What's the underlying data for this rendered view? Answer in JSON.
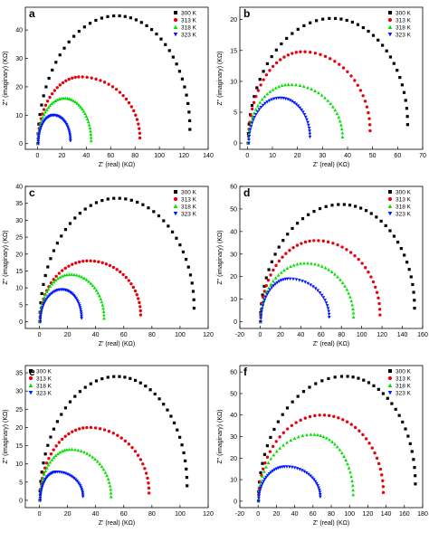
{
  "figure": {
    "legend_labels": [
      "300 K",
      "313 K",
      "318 K",
      "323 K"
    ],
    "colors": [
      "#000000",
      "#e8000b",
      "#00e000",
      "#0018ff"
    ],
    "markers": [
      "square",
      "circle",
      "triangle-up",
      "triangle-down"
    ]
  },
  "chart_data": [
    {
      "type": "scatter",
      "panel": "a",
      "xlabel": "Z' (real) (KΩ)",
      "ylabel": "Z\" (imaginary) (KΩ)",
      "xlim": [
        -10,
        140
      ],
      "ylim": [
        -2,
        48
      ],
      "xticks": [
        0,
        20,
        40,
        60,
        80,
        100,
        120,
        140
      ],
      "yticks": [
        0,
        10,
        20,
        30,
        40
      ],
      "legend": "top-right",
      "series": [
        {
          "name": "300 K",
          "start": 0.3,
          "peak_x": 65,
          "peak_y": 45,
          "end_x": 125,
          "end_y": 5
        },
        {
          "name": "313 K",
          "start": 0.4,
          "peak_x": 35,
          "peak_y": 23.5,
          "end_x": 84,
          "end_y": 2
        },
        {
          "name": "318 K",
          "start": 0.4,
          "peak_x": 22,
          "peak_y": 16,
          "end_x": 44,
          "end_y": 1
        },
        {
          "name": "323 K",
          "start": 0.6,
          "peak_x": 13,
          "peak_y": 10,
          "end_x": 27,
          "end_y": 1
        }
      ]
    },
    {
      "type": "scatter",
      "panel": "b",
      "xlabel": "Z' (real) (KΩ)",
      "ylabel": "",
      "xlim": [
        -3,
        70
      ],
      "ylim": [
        -1,
        22
      ],
      "xticks": [
        0,
        10,
        20,
        30,
        40,
        50,
        60,
        70
      ],
      "yticks": [
        0,
        5,
        10,
        15,
        20
      ],
      "legend": "top-right",
      "series": [
        {
          "name": "300 K",
          "start": 0.3,
          "peak_x": 34,
          "peak_y": 20.2,
          "end_x": 64,
          "end_y": 3
        },
        {
          "name": "313 K",
          "start": 0.4,
          "peak_x": 22,
          "peak_y": 14.8,
          "end_x": 49,
          "end_y": 2
        },
        {
          "name": "318 K",
          "start": 0.4,
          "peak_x": 17,
          "peak_y": 9.5,
          "end_x": 38,
          "end_y": 1
        },
        {
          "name": "323 K",
          "start": 0.6,
          "peak_x": 13,
          "peak_y": 7.3,
          "end_x": 25,
          "end_y": 1
        }
      ]
    },
    {
      "type": "scatter",
      "panel": "c",
      "xlabel": "Z' (real) (KΩ)",
      "ylabel": "Z\" (imaginary) (KΩ)",
      "xlim": [
        -10,
        120
      ],
      "ylim": [
        -2,
        40
      ],
      "xticks": [
        0,
        20,
        40,
        60,
        80,
        100,
        120
      ],
      "yticks": [
        0,
        5,
        10,
        15,
        20,
        25,
        30,
        35,
        40
      ],
      "legend": "top-right",
      "series": [
        {
          "name": "300 K",
          "start": 0.3,
          "peak_x": 55,
          "peak_y": 36.5,
          "end_x": 110,
          "end_y": 4
        },
        {
          "name": "313 K",
          "start": 0.4,
          "peak_x": 35,
          "peak_y": 18,
          "end_x": 72,
          "end_y": 2
        },
        {
          "name": "318 K",
          "start": 0.4,
          "peak_x": 22,
          "peak_y": 14,
          "end_x": 46,
          "end_y": 1
        },
        {
          "name": "323 K",
          "start": 0.6,
          "peak_x": 16,
          "peak_y": 9.5,
          "end_x": 30,
          "end_y": 1
        }
      ]
    },
    {
      "type": "scatter",
      "panel": "d",
      "xlabel": "Z' (real) (KΩ)",
      "ylabel": "",
      "xlim": [
        -20,
        160
      ],
      "ylim": [
        -3,
        60
      ],
      "xticks": [
        -20,
        0,
        20,
        40,
        60,
        80,
        100,
        120,
        140,
        160
      ],
      "yticks": [
        0,
        10,
        20,
        30,
        40,
        50,
        60
      ],
      "legend": "top-right",
      "series": [
        {
          "name": "300 K",
          "start": 0.3,
          "peak_x": 80,
          "peak_y": 52,
          "end_x": 152,
          "end_y": 6
        },
        {
          "name": "313 K",
          "start": 0.4,
          "peak_x": 55,
          "peak_y": 36,
          "end_x": 118,
          "end_y": 3
        },
        {
          "name": "318 K",
          "start": 0.4,
          "peak_x": 45,
          "peak_y": 26,
          "end_x": 92,
          "end_y": 2
        },
        {
          "name": "323 K",
          "start": 0.6,
          "peak_x": 28,
          "peak_y": 19,
          "end_x": 68,
          "end_y": 2
        }
      ]
    },
    {
      "type": "scatter",
      "panel": "e",
      "xlabel": "Z' (real) (KΩ)",
      "ylabel": "Z\" (imaginary) (KΩ)",
      "xlim": [
        -10,
        120
      ],
      "ylim": [
        -2,
        37
      ],
      "xticks": [
        0,
        20,
        40,
        60,
        80,
        100,
        120
      ],
      "yticks": [
        0,
        5,
        10,
        15,
        20,
        25,
        30,
        35
      ],
      "legend": "top-left",
      "series": [
        {
          "name": "300 K",
          "start": 0.3,
          "peak_x": 55,
          "peak_y": 34,
          "end_x": 105,
          "end_y": 4
        },
        {
          "name": "313 K",
          "start": 0.4,
          "peak_x": 35,
          "peak_y": 20,
          "end_x": 78,
          "end_y": 2
        },
        {
          "name": "318 K",
          "start": 0.4,
          "peak_x": 22,
          "peak_y": 14,
          "end_x": 51,
          "end_y": 1
        },
        {
          "name": "323 K",
          "start": 0.6,
          "peak_x": 12,
          "peak_y": 7.8,
          "end_x": 31,
          "end_y": 1
        }
      ]
    },
    {
      "type": "scatter",
      "panel": "f",
      "xlabel": "Z' (real) (KΩ)",
      "ylabel": "",
      "xlim": [
        -20,
        180
      ],
      "ylim": [
        -3,
        63
      ],
      "xticks": [
        -20,
        0,
        20,
        40,
        60,
        80,
        100,
        120,
        140,
        160,
        180
      ],
      "yticks": [
        0,
        10,
        20,
        30,
        40,
        50,
        60
      ],
      "legend": "top-right",
      "series": [
        {
          "name": "300 K",
          "start": 0.3,
          "peak_x": 95,
          "peak_y": 58,
          "end_x": 172,
          "end_y": 8
        },
        {
          "name": "313 K",
          "start": 0.4,
          "peak_x": 70,
          "peak_y": 40,
          "end_x": 137,
          "end_y": 4
        },
        {
          "name": "318 K",
          "start": 0.4,
          "peak_x": 60,
          "peak_y": 31,
          "end_x": 104,
          "end_y": 3
        },
        {
          "name": "323 K",
          "start": 0.6,
          "peak_x": 30,
          "peak_y": 16,
          "end_x": 68,
          "end_y": 2
        }
      ]
    }
  ]
}
